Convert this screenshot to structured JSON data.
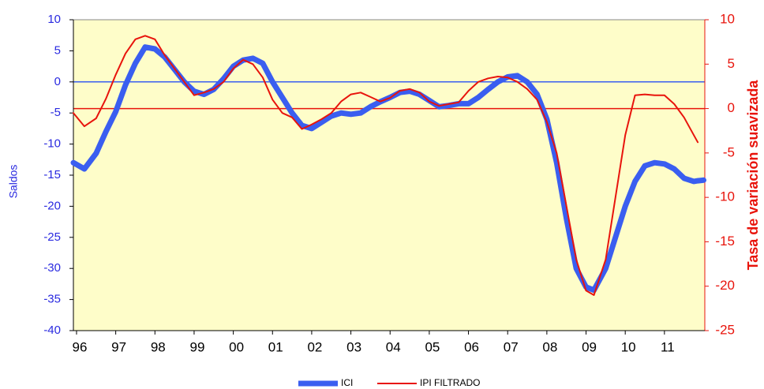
{
  "chart_data": {
    "type": "line",
    "y_axis_label": "Saldos",
    "y2_axis_label": "Tasa de variación suavizada",
    "x": [
      1995.92,
      1996.2,
      1996.5,
      1996.75,
      1997,
      1997.25,
      1997.5,
      1997.75,
      1998,
      1998.25,
      1998.5,
      1998.75,
      1999,
      1999.25,
      1999.5,
      1999.75,
      2000,
      2000.25,
      2000.5,
      2000.75,
      2001,
      2001.25,
      2001.5,
      2001.75,
      2002,
      2002.25,
      2002.5,
      2002.75,
      2003,
      2003.25,
      2003.5,
      2003.75,
      2004,
      2004.25,
      2004.5,
      2004.75,
      2005,
      2005.25,
      2005.5,
      2005.75,
      2006,
      2006.25,
      2006.5,
      2006.75,
      2007,
      2007.25,
      2007.5,
      2007.75,
      2008,
      2008.25,
      2008.5,
      2008.75,
      2009,
      2009.2,
      2009.5,
      2009.75,
      2010,
      2010.25,
      2010.5,
      2010.75,
      2011,
      2011.25,
      2011.5,
      2011.75,
      2011.85,
      2012
    ],
    "series": [
      {
        "name": "ICI",
        "color": "#3a5ef0",
        "values": [
          -13,
          -14,
          -11.5,
          -8,
          -4.8,
          -0.5,
          3,
          5.6,
          5.3,
          4,
          2,
          0,
          -1.5,
          -2,
          -1.2,
          0.5,
          2.5,
          3.5,
          3.8,
          3,
          0,
          -2.5,
          -5,
          -7,
          -7.5,
          -6.5,
          -5.5,
          -5,
          -5.2,
          -5,
          -4,
          -3.2,
          -2.5,
          -1.7,
          -1.5,
          -2,
          -3,
          -4,
          -3.8,
          -3.5,
          -3.5,
          -2.5,
          -1.2,
          0,
          0.8,
          1,
          0,
          -2,
          -6,
          -13,
          -22,
          -30,
          -33,
          -33.5,
          -30,
          -25,
          -20,
          -16,
          -13.5,
          -13,
          -13.2,
          -14,
          -15.5,
          -16,
          -15.9,
          -15.8
        ]
      },
      {
        "name": "IPI FILTRADO",
        "color": "#e8140c",
        "axis": "y2",
        "values": [
          -0.5,
          -2,
          -1.1,
          1.1,
          3.8,
          6.2,
          7.8,
          8.2,
          7.8,
          6,
          4.5,
          3,
          1.5,
          1.8,
          2.2,
          3,
          4.5,
          5.5,
          5,
          3.5,
          1,
          -0.5,
          -1,
          -2.3,
          -1.8,
          -1.2,
          -0.5,
          0.8,
          1.6,
          1.8,
          1.3,
          0.8,
          1.2,
          2,
          2.2,
          1.8,
          0.8,
          0.3,
          0.5,
          0.7,
          2,
          3,
          3.4,
          3.6,
          3.5,
          3,
          2.2,
          1,
          -1.5,
          -5,
          -11,
          -17,
          -20.5,
          -21,
          -17,
          -10,
          -3,
          1.5,
          1.6,
          1.5,
          1.5,
          0.5,
          -1,
          -3,
          -3.8,
          null
        ]
      }
    ],
    "xlim": [
      1995.92,
      2012.03
    ],
    "xticks": [
      {
        "value": 1996,
        "label": "96"
      },
      {
        "value": 1997,
        "label": "97"
      },
      {
        "value": 1998,
        "label": "98"
      },
      {
        "value": 1999,
        "label": "99"
      },
      {
        "value": 2000,
        "label": "00"
      },
      {
        "value": 2001,
        "label": "01"
      },
      {
        "value": 2002,
        "label": "02"
      },
      {
        "value": 2003,
        "label": "03"
      },
      {
        "value": 2004,
        "label": "04"
      },
      {
        "value": 2005,
        "label": "05"
      },
      {
        "value": 2006,
        "label": "06"
      },
      {
        "value": 2007,
        "label": "07"
      },
      {
        "value": 2008,
        "label": "08"
      },
      {
        "value": 2009,
        "label": "09"
      },
      {
        "value": 2010,
        "label": "10"
      },
      {
        "value": 2011,
        "label": "11"
      }
    ],
    "ylim": [
      -40,
      10
    ],
    "yticks": [
      -40,
      -35,
      -30,
      -25,
      -20,
      -15,
      -10,
      -5,
      0,
      5,
      10
    ],
    "y2lim": [
      -25,
      10
    ],
    "y2ticks": [
      -25,
      -20,
      -15,
      -10,
      -5,
      0,
      5,
      10
    ],
    "zero_lines": true,
    "background": "#fefdc9"
  }
}
